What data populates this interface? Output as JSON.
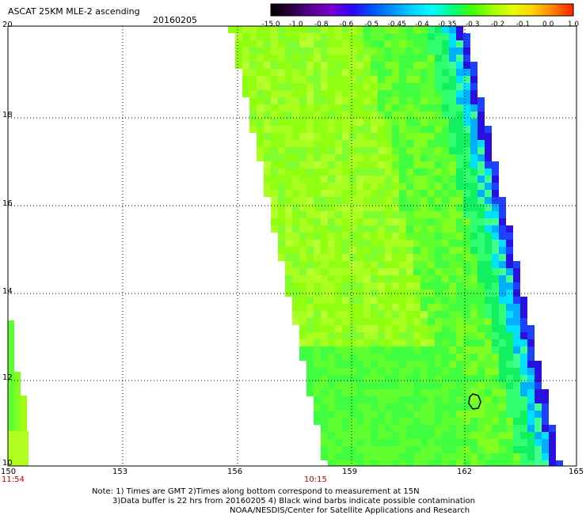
{
  "header": {
    "title": "ASCAT 25KM MLE-2 ascending",
    "date": "20160205"
  },
  "colorbar": {
    "labels": [
      "-15.0",
      "-1.0",
      "-0.8",
      "-0.6",
      "-0.5",
      "-0.45",
      "-0.4",
      "-0.35",
      "-0.3",
      "-0.2",
      "-0.1",
      "0.0",
      "1.0"
    ],
    "colors": [
      "#000000",
      "#3a0060",
      "#6a00a8",
      "#2000ff",
      "#0070ff",
      "#00c8ff",
      "#00ffd8",
      "#00ff40",
      "#70ff00",
      "#c8ff00",
      "#ffff00",
      "#ff8000",
      "#ff0000"
    ]
  },
  "axes": {
    "lat_labels": [
      "20",
      "18",
      "16",
      "14",
      "12",
      "10"
    ],
    "lon_labels": [
      "150",
      "153",
      "156",
      "159",
      "162",
      "165"
    ]
  },
  "times": [
    "11:54",
    "10:15"
  ],
  "notes": {
    "line1": "Note: 1) Times are GMT 2)Times along bottom correspond to measurement at 15N",
    "line2": "3)Data buffer is 22 hrs from 20160205 4) Black wind barbs indicate possible contamination",
    "line3": "NOAA/NESDIS/Center for Satellite Applications and Research"
  }
}
